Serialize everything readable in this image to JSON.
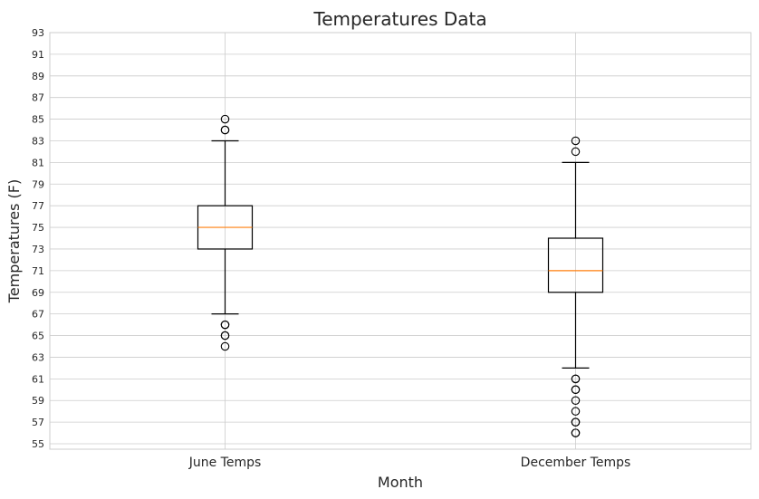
{
  "chart_data": {
    "type": "box",
    "title": "Temperatures Data",
    "xlabel": "Month",
    "ylabel": "Temperatures (F)",
    "ylim": [
      54.5,
      93
    ],
    "yticks": [
      "55",
      "57",
      "59",
      "61",
      "63",
      "65",
      "67",
      "69",
      "71",
      "73",
      "75",
      "77",
      "79",
      "81",
      "83",
      "85",
      "87",
      "89",
      "91",
      "93"
    ],
    "grid": true,
    "colors": {
      "box": "#000000",
      "median": "#ff7f0e",
      "grid": "#cccccc",
      "frame": "#cccccc"
    },
    "categories": [
      "June Temps",
      "December Temps"
    ],
    "boxes": [
      {
        "label": "June Temps",
        "whisker_low": 67,
        "q1": 73,
        "median": 75,
        "q3": 77,
        "whisker_high": 83,
        "outliers": [
          64,
          65,
          65,
          66,
          66,
          84,
          84,
          85
        ]
      },
      {
        "label": "December Temps",
        "whisker_low": 62,
        "q1": 69,
        "median": 71,
        "q3": 74,
        "whisker_high": 81,
        "outliers": [
          56,
          56,
          57,
          57,
          58,
          59,
          60,
          60,
          61,
          61,
          82,
          83
        ]
      }
    ]
  }
}
